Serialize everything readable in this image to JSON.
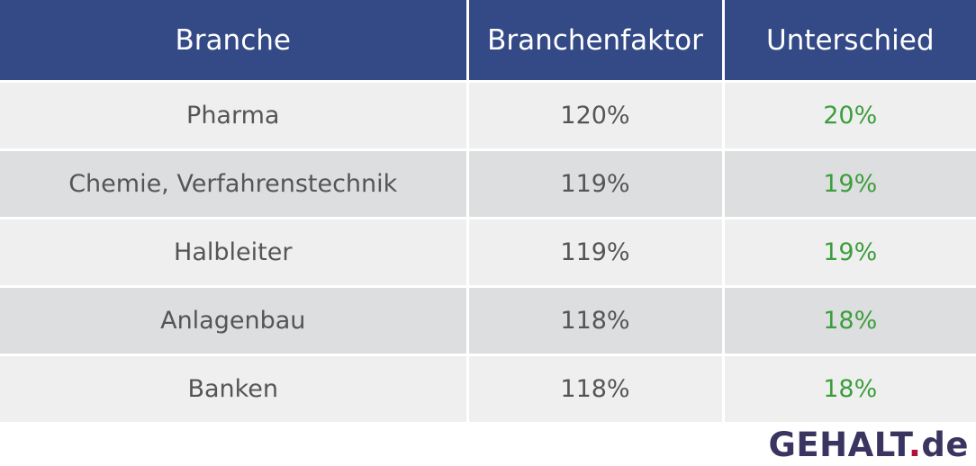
{
  "colors": {
    "header_bg": "#344a86",
    "header_text": "#ffffff",
    "row_odd": "#efefef",
    "row_even": "#dddedf",
    "text": "#555555",
    "positive": "#3c9e3c",
    "logo_main": "#3a3560",
    "logo_dot": "#b0103a"
  },
  "table": {
    "headers": [
      "Branche",
      "Branchenfaktor",
      "Unterschied"
    ],
    "rows": [
      [
        "Pharma",
        "120%",
        "20%"
      ],
      [
        "Chemie, Verfahrenstechnik",
        "119%",
        "19%"
      ],
      [
        "Halbleiter",
        "119%",
        "19%"
      ],
      [
        "Anlagenbau",
        "118%",
        "18%"
      ],
      [
        "Banken",
        "118%",
        "18%"
      ]
    ]
  },
  "logo": {
    "main": "GEHALT",
    "dot": ".",
    "tld": "de"
  }
}
